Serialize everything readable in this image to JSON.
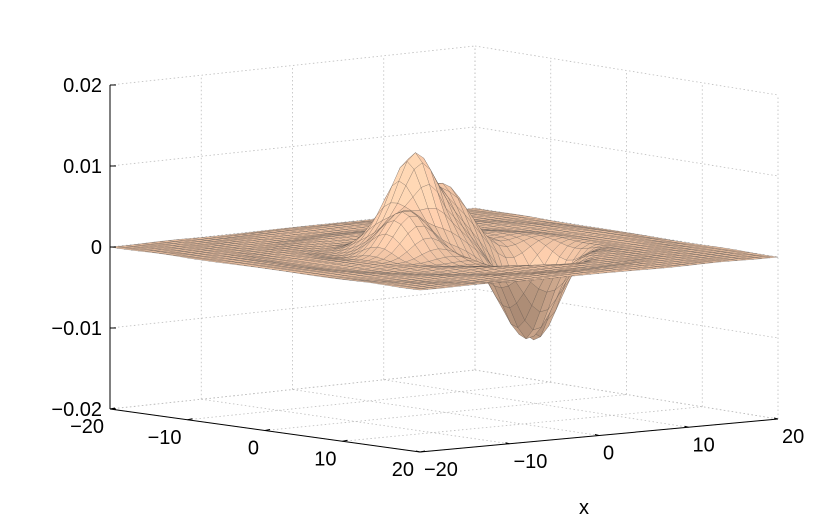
{
  "chart_data": {
    "type": "surface",
    "title": "",
    "xlabel": "x",
    "ylabel": "",
    "zlabel": "",
    "xlim": [
      -20,
      20
    ],
    "ylim": [
      -20,
      20
    ],
    "zlim": [
      -0.02,
      0.02
    ],
    "grid": true,
    "surface_color": "#f5c8a8",
    "mesh_color": "#3a3a3a",
    "x_ticks": [
      {
        "value": 20,
        "label": "20"
      },
      {
        "value": 10,
        "label": "10"
      },
      {
        "value": 0,
        "label": "0"
      },
      {
        "value": -10,
        "label": "−10"
      },
      {
        "value": -20,
        "label": "−20"
      }
    ],
    "y_ticks": [
      {
        "value": -20,
        "label": "−20"
      },
      {
        "value": -10,
        "label": "−10"
      },
      {
        "value": 0,
        "label": "0"
      },
      {
        "value": 10,
        "label": "10"
      },
      {
        "value": 20,
        "label": "20"
      }
    ],
    "z_ticks": [
      {
        "value": 0.02,
        "label": "0.02"
      },
      {
        "value": 0.01,
        "label": "0.01"
      },
      {
        "value": 0,
        "label": "0"
      },
      {
        "value": -0.01,
        "label": "−0.01"
      },
      {
        "value": -0.02,
        "label": "−0.02"
      }
    ],
    "peaks": [
      {
        "x": -2,
        "y": -2,
        "z": 0.0115
      },
      {
        "x": 3,
        "y": -4,
        "z": 0.0073
      },
      {
        "x": -6,
        "y": 2,
        "z": 0.0053
      }
    ],
    "troughs": [
      {
        "x": 3,
        "y": 7,
        "z": -0.0105
      },
      {
        "x": 8,
        "y": 2,
        "z": -0.0118
      }
    ]
  }
}
